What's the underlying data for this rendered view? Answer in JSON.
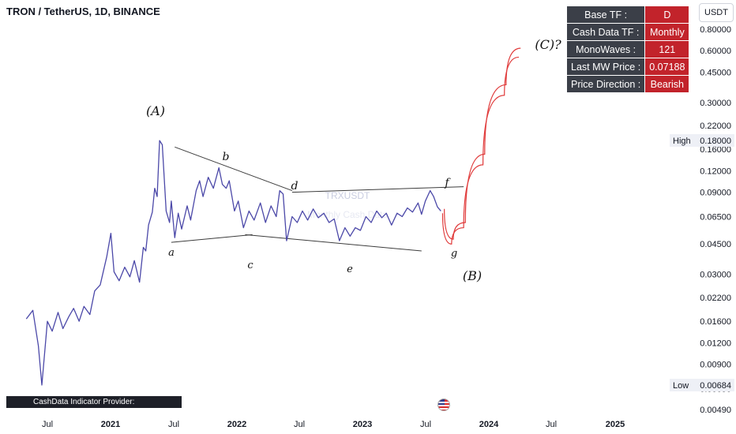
{
  "header": {
    "title": "TRON / TetherUS, 1D, BINANCE",
    "currency": "USDT"
  },
  "info_table": [
    {
      "key": "Base TF :",
      "value": "D"
    },
    {
      "key": "Cash Data TF :",
      "value": "Monthly"
    },
    {
      "key": "MonoWaves :",
      "value": "121"
    },
    {
      "key": "Last MW Price :",
      "value": "0.07188"
    },
    {
      "key": "Price Direction :",
      "value": "Bearish"
    }
  ],
  "watermark": {
    "symbol": "TRXUSDT",
    "subtitle": "Monthly Cash Data"
  },
  "footer": {
    "provider": "CashData Indicator Provider: iranneowave.com"
  },
  "colors": {
    "line": "#4b48a8",
    "projection": "#e03a3a",
    "table_key_bg": "#3b3f48",
    "table_value_bg": "#c2232b",
    "trendline": "#3c3c3c"
  },
  "chart_data": {
    "type": "line",
    "scale": "log",
    "yticks": [
      "0.80000",
      "0.60000",
      "0.45000",
      "0.30000",
      "0.22000",
      "0.16000",
      "0.12000",
      "0.09000",
      "0.06500",
      "0.04500",
      "0.03000",
      "0.02200",
      "0.01600",
      "0.01200",
      "0.00900",
      "0.00650",
      "0.00490"
    ],
    "xticks": [
      {
        "label": "Jul",
        "bold": false
      },
      {
        "label": "2021",
        "bold": true
      },
      {
        "label": "Jul",
        "bold": false
      },
      {
        "label": "2022",
        "bold": true
      },
      {
        "label": "Jul",
        "bold": false
      },
      {
        "label": "2023",
        "bold": true
      },
      {
        "label": "Jul",
        "bold": false
      },
      {
        "label": "2024",
        "bold": true
      },
      {
        "label": "Jul",
        "bold": false
      },
      {
        "label": "2025",
        "bold": true
      }
    ],
    "high": {
      "label": "High",
      "value": "0.18000"
    },
    "low": {
      "label": "Low",
      "value": "0.00684"
    },
    "wave_labels": [
      "(A)",
      "b",
      "d",
      "f",
      "a",
      "c",
      "e",
      "g",
      "(B)",
      "(C)?"
    ],
    "series": [
      {
        "values": [
          [
            "2020-05-01",
            0.0165
          ],
          [
            "2020-05-20",
            0.0185
          ],
          [
            "2020-06-05",
            0.0115
          ],
          [
            "2020-06-15",
            0.0068
          ],
          [
            "2020-07-01",
            0.016
          ],
          [
            "2020-07-15",
            0.014
          ],
          [
            "2020-08-01",
            0.018
          ],
          [
            "2020-08-15",
            0.0145
          ],
          [
            "2020-09-01",
            0.017
          ],
          [
            "2020-09-15",
            0.019
          ],
          [
            "2020-10-01",
            0.016
          ],
          [
            "2020-10-15",
            0.0195
          ],
          [
            "2020-11-01",
            0.0175
          ],
          [
            "2020-11-15",
            0.024
          ],
          [
            "2020-12-01",
            0.026
          ],
          [
            "2020-12-20",
            0.038
          ],
          [
            "2021-01-01",
            0.052
          ],
          [
            "2021-01-10",
            0.031
          ],
          [
            "2021-01-25",
            0.0275
          ],
          [
            "2021-02-10",
            0.033
          ],
          [
            "2021-02-25",
            0.029
          ],
          [
            "2021-03-10",
            0.036
          ],
          [
            "2021-03-25",
            0.027
          ],
          [
            "2021-04-05",
            0.043
          ],
          [
            "2021-04-12",
            0.041
          ],
          [
            "2021-04-20",
            0.058
          ],
          [
            "2021-05-01",
            0.069
          ],
          [
            "2021-05-08",
            0.095
          ],
          [
            "2021-05-15",
            0.085
          ],
          [
            "2021-05-22",
            0.18
          ],
          [
            "2021-05-30",
            0.17
          ],
          [
            "2021-06-10",
            0.07
          ],
          [
            "2021-06-20",
            0.06
          ],
          [
            "2021-06-25",
            0.08
          ],
          [
            "2021-07-05",
            0.049
          ],
          [
            "2021-07-15",
            0.068
          ],
          [
            "2021-07-25",
            0.055
          ],
          [
            "2021-08-10",
            0.075
          ],
          [
            "2021-08-20",
            0.062
          ],
          [
            "2021-09-05",
            0.092
          ],
          [
            "2021-09-15",
            0.105
          ],
          [
            "2021-09-25",
            0.085
          ],
          [
            "2021-10-10",
            0.11
          ],
          [
            "2021-10-25",
            0.095
          ],
          [
            "2021-11-10",
            0.125
          ],
          [
            "2021-11-20",
            0.1
          ],
          [
            "2021-12-01",
            0.095
          ],
          [
            "2021-12-10",
            0.105
          ],
          [
            "2021-12-25",
            0.07
          ],
          [
            "2022-01-05",
            0.08
          ],
          [
            "2022-01-20",
            0.056
          ],
          [
            "2022-02-05",
            0.07
          ],
          [
            "2022-02-20",
            0.062
          ],
          [
            "2022-03-10",
            0.078
          ],
          [
            "2022-03-25",
            0.06
          ],
          [
            "2022-04-10",
            0.075
          ],
          [
            "2022-04-25",
            0.065
          ],
          [
            "2022-05-05",
            0.092
          ],
          [
            "2022-05-15",
            0.088
          ],
          [
            "2022-05-25",
            0.047
          ],
          [
            "2022-06-10",
            0.065
          ],
          [
            "2022-06-25",
            0.06
          ],
          [
            "2022-07-10",
            0.07
          ],
          [
            "2022-07-25",
            0.062
          ],
          [
            "2022-08-10",
            0.072
          ],
          [
            "2022-08-25",
            0.064
          ],
          [
            "2022-09-10",
            0.068
          ],
          [
            "2022-09-25",
            0.06
          ],
          [
            "2022-10-10",
            0.063
          ],
          [
            "2022-10-25",
            0.047
          ],
          [
            "2022-11-10",
            0.056
          ],
          [
            "2022-11-25",
            0.05
          ],
          [
            "2022-12-10",
            0.056
          ],
          [
            "2022-12-25",
            0.054
          ],
          [
            "2023-01-10",
            0.065
          ],
          [
            "2023-01-25",
            0.06
          ],
          [
            "2023-02-10",
            0.07
          ],
          [
            "2023-02-25",
            0.064
          ],
          [
            "2023-03-10",
            0.068
          ],
          [
            "2023-03-25",
            0.058
          ],
          [
            "2023-04-10",
            0.068
          ],
          [
            "2023-04-25",
            0.065
          ],
          [
            "2023-05-10",
            0.073
          ],
          [
            "2023-05-25",
            0.069
          ],
          [
            "2023-06-10",
            0.078
          ],
          [
            "2023-06-20",
            0.067
          ],
          [
            "2023-07-01",
            0.08
          ],
          [
            "2023-07-15",
            0.092
          ],
          [
            "2023-07-25",
            0.085
          ],
          [
            "2023-08-05",
            0.074
          ],
          [
            "2023-08-15",
            0.07
          ]
        ]
      }
    ],
    "annotations": {
      "trendlines": [
        {
          "from": [
            "2021-06-25",
            0.046
          ],
          "to": [
            "2022-02-15",
            0.051
          ]
        },
        {
          "from": [
            "2021-07-05",
            0.165
          ],
          "to": [
            "2022-06-10",
            0.092
          ]
        },
        {
          "from": [
            "2022-01-25",
            0.051
          ],
          "to": [
            "2023-06-20",
            0.041
          ]
        },
        {
          "from": [
            "2022-06-10",
            0.09
          ],
          "to": [
            "2023-10-20",
            0.097
          ]
        }
      ],
      "projection": [
        {
          "label": "lower",
          "values": [
            [
              "2023-08-20",
              0.068
            ],
            [
              "2023-09-15",
              0.045
            ],
            [
              "2023-10-20",
              0.056
            ],
            [
              "2023-12-15",
              0.13
            ],
            [
              "2024-02-15",
              0.33
            ],
            [
              "2024-03-28",
              0.55
            ]
          ]
        },
        {
          "label": "upper",
          "values": [
            [
              "2023-08-25",
              0.072
            ],
            [
              "2023-09-20",
              0.048
            ],
            [
              "2023-10-25",
              0.06
            ],
            [
              "2023-12-20",
              0.15
            ],
            [
              "2024-02-20",
              0.38
            ],
            [
              "2024-04-02",
              0.62
            ]
          ]
        }
      ]
    }
  }
}
